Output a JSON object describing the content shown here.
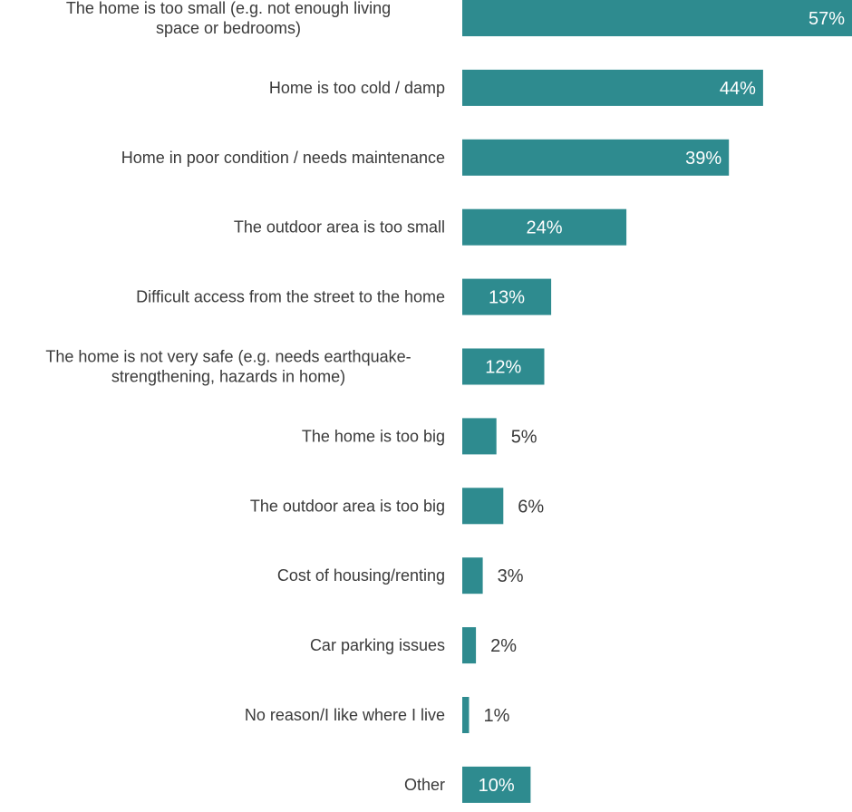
{
  "chart_data": {
    "type": "bar",
    "orientation": "horizontal",
    "categories": [
      "The home is too small (e.g. not enough living space or bedrooms)",
      "Home is too cold / damp",
      "Home in poor condition / needs maintenance",
      "The outdoor area is too small",
      "Difficult access from the street to the home",
      "The home is not very safe (e.g. needs earthquake-strengthening, hazards in home)",
      "The home is too big",
      "The outdoor area is too big",
      "Cost of  housing/renting",
      "Car parking issues",
      "No reason/I like where I live",
      "Other"
    ],
    "category_lines": [
      [
        "The home is too small (e.g. not enough living",
        "space or bedrooms)"
      ],
      [
        "Home is too cold / damp"
      ],
      [
        "Home in poor condition / needs maintenance"
      ],
      [
        "The outdoor area is too small"
      ],
      [
        "Difficult access from the street to the home"
      ],
      [
        "The home is not very safe (e.g. needs earthquake-",
        "strengthening, hazards in home)"
      ],
      [
        "The home is too big"
      ],
      [
        "The outdoor area is too big"
      ],
      [
        "Cost of  housing/renting"
      ],
      [
        "Car parking issues"
      ],
      [
        "No reason/I like where I live"
      ],
      [
        "Other"
      ]
    ],
    "values": [
      57,
      44,
      39,
      24,
      13,
      12,
      5,
      6,
      3,
      2,
      1,
      10
    ],
    "value_labels": [
      "57%",
      "44%",
      "39%",
      "24%",
      "13%",
      "12%",
      "5%",
      "6%",
      "3%",
      "2%",
      "1%",
      "10%"
    ],
    "unit": "%",
    "title": "",
    "xlabel": "",
    "ylabel": "",
    "xlim": [
      0,
      57
    ],
    "grid": false,
    "legend": "none",
    "bar_color": "#2e8b8f",
    "inside_label_color": "#ffffff",
    "outside_label_color": "#3a3a3a"
  }
}
